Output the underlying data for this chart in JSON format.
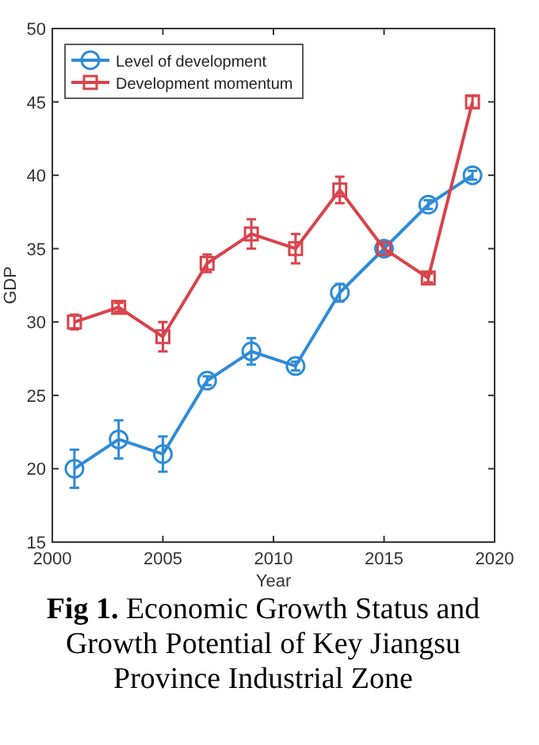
{
  "chart_data": {
    "type": "line",
    "title": "Fig 1. Economic Growth Status and Growth Potential of Key Jiangsu Province Industrial Zone",
    "xlabel": "Year",
    "ylabel": "GDP",
    "x": [
      2001,
      2003,
      2005,
      2007,
      2009,
      2011,
      2013,
      2015,
      2017,
      2019
    ],
    "series": [
      {
        "name": "Level of development",
        "color": "#2e8bd8",
        "marker": "circle",
        "values": [
          20,
          22,
          21,
          26,
          28,
          27,
          32,
          35,
          38,
          40
        ],
        "errors": [
          1.3,
          1.3,
          1.2,
          0.3,
          0.9,
          0.3,
          0.6,
          0.3,
          0.3,
          0.3
        ]
      },
      {
        "name": "Development momentum",
        "color": "#d9434b",
        "marker": "square",
        "values": [
          30,
          31,
          29,
          34,
          36,
          35,
          39,
          35,
          33,
          45
        ],
        "errors": [
          0.5,
          0.3,
          1,
          0.6,
          1,
          1,
          0.9,
          null,
          0.3,
          0.4
        ]
      }
    ],
    "xlim": [
      2000,
      2020
    ],
    "xticks": [
      2000,
      2005,
      2010,
      2015,
      2020
    ],
    "ylim": [
      15,
      50
    ],
    "yticks": [
      15,
      20,
      25,
      30,
      35,
      40,
      45,
      50
    ],
    "legend": "top left",
    "grid": false,
    "line_style": "solid"
  }
}
